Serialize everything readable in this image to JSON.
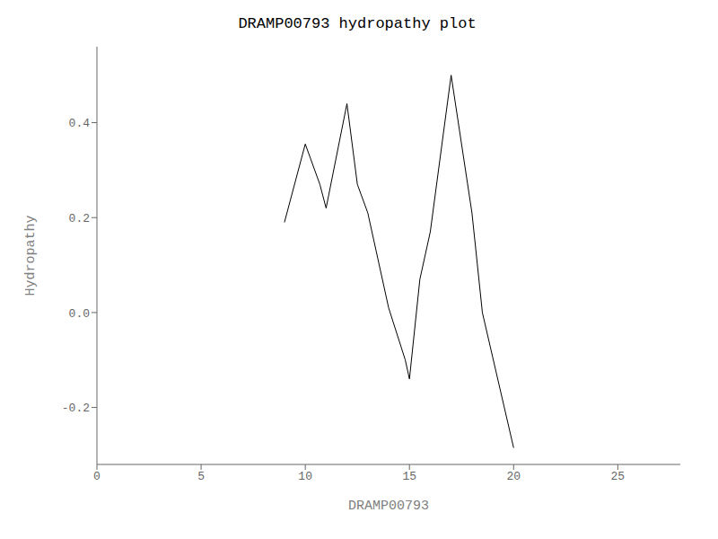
{
  "chart_data": {
    "type": "line",
    "title": "DRAMP00793 hydropathy plot",
    "xlabel": "DRAMP00793",
    "ylabel": "Hydropathy",
    "xlim": [
      0,
      28
    ],
    "ylim": [
      -0.32,
      0.56
    ],
    "xticks": [
      0,
      5,
      10,
      15,
      20,
      25
    ],
    "yticks": [
      -0.2,
      {
        "value": 0.0,
        "label": "0.0"
      },
      0.2,
      0.4
    ],
    "color": "black",
    "x": [
      9.0,
      10.0,
      10.7,
      11.0,
      12.0,
      12.5,
      13.0,
      14.0,
      14.8,
      15.0,
      15.5,
      16.0,
      17.0,
      18.0,
      18.5,
      20.0
    ],
    "values": [
      0.19,
      0.355,
      0.27,
      0.22,
      0.44,
      0.27,
      0.21,
      0.01,
      -0.1,
      -0.14,
      0.07,
      0.17,
      0.5,
      0.21,
      0.0,
      -0.285
    ]
  }
}
